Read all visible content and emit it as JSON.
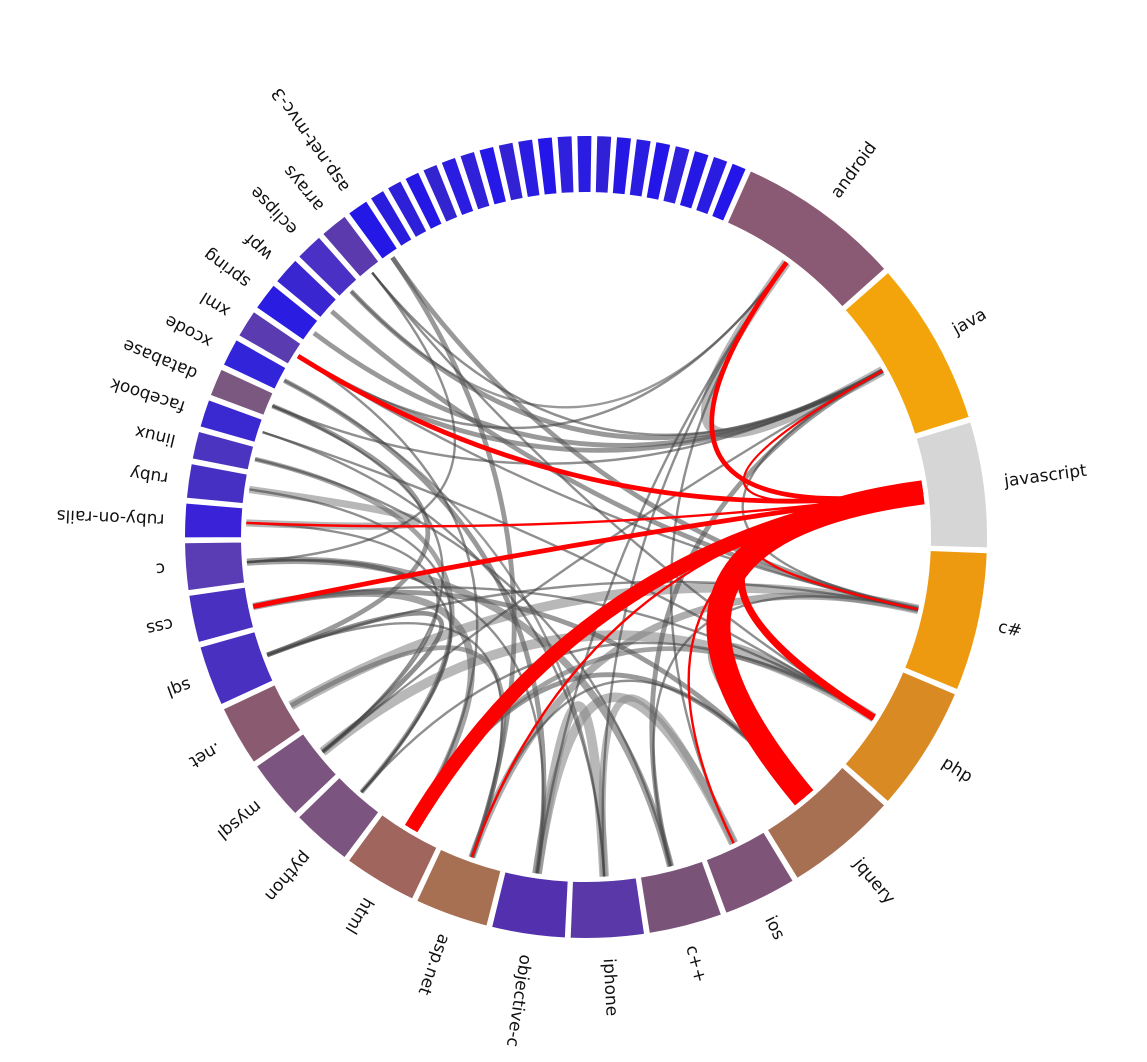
{
  "diagram": {
    "segments": [
      {
        "label": "javascript",
        "color": "#d6d6d6"
      },
      {
        "label": "c#",
        "color": "#ee9a10"
      },
      {
        "label": "php",
        "color": "#d98a22"
      },
      {
        "label": "jquery",
        "color": "#a87052"
      },
      {
        "label": "ios",
        "color": "#7e5478"
      },
      {
        "label": "c++",
        "color": "#7a5478"
      },
      {
        "label": "iphone",
        "color": "#5b38a8"
      },
      {
        "label": "objective-c",
        "color": "#5330ad"
      },
      {
        "label": "asp.net",
        "color": "#a87052"
      },
      {
        "label": "html",
        "color": "#a0665e"
      },
      {
        "label": "python",
        "color": "#7c5480"
      },
      {
        "label": "mysql",
        "color": "#7c5480"
      },
      {
        "label": ".net",
        "color": "#8a5a70"
      },
      {
        "label": "sql",
        "color": "#4a30c0"
      },
      {
        "label": "css",
        "color": "#4a30c0"
      },
      {
        "label": "c",
        "color": "#5a3cb4"
      },
      {
        "label": "ruby-on-rails",
        "color": "#3a22d8"
      },
      {
        "label": "ruby",
        "color": "#4630c4"
      },
      {
        "label": "linux",
        "color": "#4a34c0"
      },
      {
        "label": "facebook",
        "color": "#3a28d0"
      },
      {
        "label": "database",
        "color": "#7a5880"
      },
      {
        "label": "xcode",
        "color": "#3224d8"
      },
      {
        "label": "xml",
        "color": "#5a3cb0"
      },
      {
        "label": "spring",
        "color": "#2a1ce0"
      },
      {
        "label": "wpf",
        "color": "#3a26d0"
      },
      {
        "label": "eclipse",
        "color": "#4a30c4"
      },
      {
        "label": "arrays",
        "color": "#5a3aac"
      },
      {
        "label": "asp.net-mvc-3",
        "color": "#2418e6"
      },
      {
        "label": "",
        "color": "#2a1cdc"
      },
      {
        "label": "",
        "color": "#2e20d8"
      },
      {
        "label": "",
        "color": "#2618e4"
      },
      {
        "label": "",
        "color": "#3424d0"
      },
      {
        "label": "",
        "color": "#2a1ce0"
      },
      {
        "label": "",
        "color": "#3020d8"
      },
      {
        "label": "",
        "color": "#2618e6"
      },
      {
        "label": "",
        "color": "#3222d4"
      },
      {
        "label": "",
        "color": "#2a1ce0"
      },
      {
        "label": "",
        "color": "#2416e8"
      },
      {
        "label": "",
        "color": "#2e20dc"
      },
      {
        "label": "",
        "color": "#2a1ce0"
      },
      {
        "label": "",
        "color": "#3020d6"
      },
      {
        "label": "",
        "color": "#2618e4"
      },
      {
        "label": "",
        "color": "#2a1ce0"
      },
      {
        "label": "",
        "color": "#2416e8"
      },
      {
        "label": "",
        "color": "#2e20dc"
      },
      {
        "label": "",
        "color": "#2618e4"
      },
      {
        "label": "",
        "color": "#2a1ce0"
      },
      {
        "label": "",
        "color": "#2416e8"
      },
      {
        "label": "android",
        "color": "#8a5a74"
      },
      {
        "label": "java",
        "color": "#f2a40a"
      }
    ],
    "chords": [
      {
        "from": "javascript",
        "to": "jquery",
        "weight": 10,
        "color": "#ff0000"
      },
      {
        "from": "javascript",
        "to": "html",
        "weight": 6,
        "color": "#ff0000"
      },
      {
        "from": "javascript",
        "to": "php",
        "weight": 3,
        "color": "#ff0000"
      },
      {
        "from": "javascript",
        "to": "css",
        "weight": 2,
        "color": "#ff0000"
      },
      {
        "from": "javascript",
        "to": "c#",
        "weight": 1,
        "color": "#ff0000"
      },
      {
        "from": "javascript",
        "to": "asp.net",
        "weight": 1,
        "color": "#ff0000"
      },
      {
        "from": "javascript",
        "to": "xml",
        "weight": 2,
        "color": "#ff0000"
      },
      {
        "from": "javascript",
        "to": "java",
        "weight": 1,
        "color": "#ff0000"
      },
      {
        "from": "javascript",
        "to": "android",
        "weight": 2,
        "color": "#ff0000"
      },
      {
        "from": "javascript",
        "to": "ruby-on-rails",
        "weight": 1,
        "color": "#ff0000"
      },
      {
        "from": "javascript",
        "to": "ios",
        "weight": 1,
        "color": "#ff0000"
      },
      {
        "from": "iphone",
        "to": "objective-c",
        "weight": 4,
        "color": "#888888"
      },
      {
        "from": "ios",
        "to": "objective-c",
        "weight": 4,
        "color": "#888888"
      },
      {
        "from": "iphone",
        "to": "ios",
        "weight": 3,
        "color": "#888888"
      },
      {
        "from": "java",
        "to": "android",
        "weight": 4,
        "color": "#888888"
      },
      {
        "from": "c#",
        "to": ".net",
        "weight": 4,
        "color": "#888888"
      },
      {
        "from": "c#",
        "to": "asp.net",
        "weight": 3,
        "color": "#777777"
      },
      {
        "from": "php",
        "to": "mysql",
        "weight": 4,
        "color": "#888888"
      },
      {
        "from": "jquery",
        "to": "html",
        "weight": 2,
        "color": "#555555"
      },
      {
        "from": "html",
        "to": "css",
        "weight": 3,
        "color": "#666666"
      },
      {
        "from": "ruby",
        "to": "ruby-on-rails",
        "weight": 3,
        "color": "#888888"
      },
      {
        "from": "c",
        "to": "c++",
        "weight": 3,
        "color": "#666666"
      },
      {
        "from": "sql",
        "to": "mysql",
        "weight": 2,
        "color": "#444444"
      },
      {
        "from": "php",
        "to": "jquery",
        "weight": 2,
        "color": "#777777"
      },
      {
        "from": "java",
        "to": "xml",
        "weight": 2,
        "color": "#555555"
      },
      {
        "from": "java",
        "to": "spring",
        "weight": 2,
        "color": "#555555"
      },
      {
        "from": "java",
        "to": "eclipse",
        "weight": 2,
        "color": "#555555"
      },
      {
        "from": "android",
        "to": "eclipse",
        "weight": 1,
        "color": "#555555"
      },
      {
        "from": "c#",
        "to": "wpf",
        "weight": 2,
        "color": "#555555"
      },
      {
        "from": "c#",
        "to": "asp.net-mvc-3",
        "weight": 2,
        "color": "#555555"
      },
      {
        "from": "asp.net",
        "to": "asp.net-mvc-3",
        "weight": 2,
        "color": "#555555"
      },
      {
        "from": "objective-c",
        "to": "xcode",
        "weight": 2,
        "color": "#555555"
      },
      {
        "from": "iphone",
        "to": "xcode",
        "weight": 1,
        "color": "#555555"
      },
      {
        "from": "python",
        "to": "linux",
        "weight": 2,
        "color": "#666666"
      },
      {
        "from": "python",
        "to": "c",
        "weight": 1,
        "color": "#444444"
      },
      {
        "from": "c++",
        "to": "linux",
        "weight": 1,
        "color": "#444444"
      },
      {
        "from": "sql",
        "to": "database",
        "weight": 2,
        "color": "#555555"
      },
      {
        "from": "mysql",
        "to": "database",
        "weight": 1,
        "color": "#444444"
      },
      {
        "from": "php",
        "to": "facebook",
        "weight": 1,
        "color": "#444444"
      },
      {
        "from": "java",
        "to": "c++",
        "weight": 2,
        "color": "#555555"
      },
      {
        "from": "java",
        "to": "c#",
        "weight": 1,
        "color": "#444444"
      },
      {
        "from": "java",
        "to": "arrays",
        "weight": 1,
        "color": "#444444"
      },
      {
        "from": "c",
        "to": "arrays",
        "weight": 1,
        "color": "#444444"
      },
      {
        "from": ".net",
        "to": "asp.net",
        "weight": 2,
        "color": "#666666"
      },
      {
        "from": "c#",
        "to": "sql",
        "weight": 1,
        "color": "#444444"
      },
      {
        "from": "php",
        "to": "html",
        "weight": 2,
        "color": "#666666"
      },
      {
        "from": "php",
        "to": "css",
        "weight": 1,
        "color": "#444444"
      },
      {
        "from": "jquery",
        "to": "css",
        "weight": 2,
        "color": "#555555"
      },
      {
        "from": "jquery",
        "to": "asp.net",
        "weight": 1,
        "color": "#444444"
      },
      {
        "from": "python",
        "to": "ruby",
        "weight": 1,
        "color": "#444444"
      },
      {
        "from": "android",
        "to": "iphone",
        "weight": 1,
        "color": "#444444"
      },
      {
        "from": "android",
        "to": "ios",
        "weight": 1,
        "color": "#444444"
      },
      {
        "from": "objective-c",
        "to": "c",
        "weight": 1,
        "color": "#444444"
      },
      {
        "from": "iphone",
        "to": "facebook",
        "weight": 1,
        "color": "#444444"
      },
      {
        "from": "php",
        "to": "python",
        "weight": 1,
        "color": "#444444"
      },
      {
        "from": "c++",
        "to": "c#",
        "weight": 1,
        "color": "#444444"
      },
      {
        "from": "html",
        "to": "xml",
        "weight": 1,
        "color": "#444444"
      },
      {
        "from": "asp.net",
        "to": "sql",
        "weight": 1,
        "color": "#444444"
      },
      {
        "from": "ruby-on-rails",
        "to": "mysql",
        "weight": 1,
        "color": "#444444"
      },
      {
        "from": "java",
        "to": "mysql",
        "weight": 1,
        "color": "#444444"
      },
      {
        "from": "java",
        "to": "database",
        "weight": 1,
        "color": "#444444"
      },
      {
        "from": "c#",
        "to": "xml",
        "weight": 1,
        "color": "#444444"
      },
      {
        "from": "php",
        "to": "arrays",
        "weight": 1,
        "color": "#444444"
      },
      {
        "from": "android",
        "to": "xml",
        "weight": 1,
        "color": "#444444"
      },
      {
        "from": "objective-c",
        "to": "android",
        "weight": 1,
        "color": "#444444"
      }
    ]
  }
}
